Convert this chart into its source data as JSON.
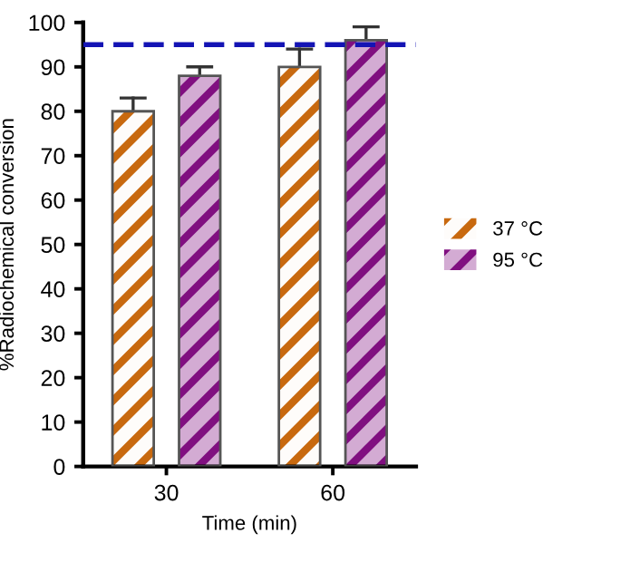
{
  "chart_data": {
    "type": "bar",
    "xlabel": "Time (min)",
    "ylabel": "%Radiochemical conversion",
    "categories": [
      "30",
      "60"
    ],
    "series": [
      {
        "name": "37 °C",
        "color": "#c8690f",
        "values": [
          80,
          90
        ],
        "errors": [
          [
            80,
            83
          ],
          [
            90,
            94
          ]
        ]
      },
      {
        "name": "95 °C",
        "color": "#800f80",
        "values": [
          88,
          96
        ],
        "errors": [
          [
            88,
            90
          ],
          [
            96,
            99
          ]
        ]
      }
    ],
    "ylim": [
      0,
      100
    ],
    "yticks": [
      0,
      10,
      20,
      30,
      40,
      50,
      60,
      70,
      80,
      90,
      100
    ],
    "grid": false,
    "legend": "right",
    "ref_lines": [
      {
        "axis": "y",
        "value": 95,
        "color": "#1414b4",
        "line_style": "dashed"
      }
    ]
  }
}
